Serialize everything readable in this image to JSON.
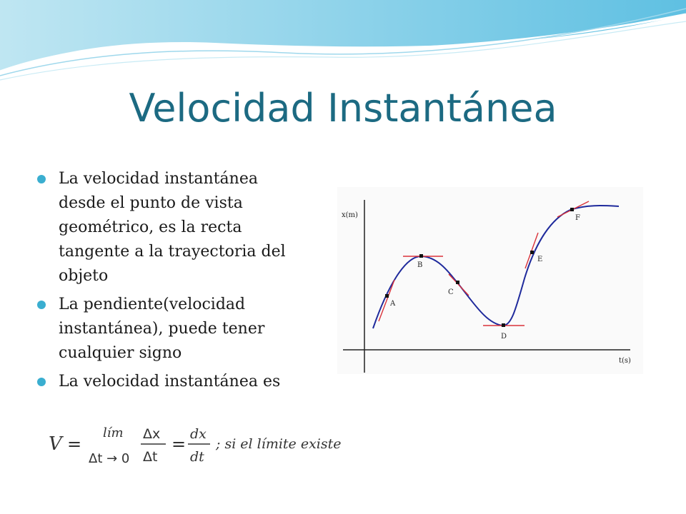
{
  "title": "Velocidad Instantánea",
  "bullets": [
    "La velocidad instantánea desde el punto de vista geométrico, es la recta tangente a la trayectoria del objeto",
    "La pendiente(velocidad instantánea), puede tener cualquier signo",
    "La velocidad instantánea es"
  ],
  "graph": {
    "y_axis_label": "x(m)",
    "x_axis_label": "t(s)",
    "points": [
      "A",
      "B",
      "C",
      "D",
      "E",
      "F"
    ]
  },
  "formula": {
    "v": "V",
    "eq1": "=",
    "lim": "lím",
    "lim_sub": "Δt → 0",
    "num1": "Δx",
    "den1": "Δt",
    "eq2": "=",
    "num2": "dx",
    "den2": "dt",
    "tail": "; si el límite existe"
  },
  "colors": {
    "title": "#1c6a82",
    "bullet": "#3aaed0",
    "curve": "#1f2a9c",
    "tangent": "#d9323a"
  }
}
